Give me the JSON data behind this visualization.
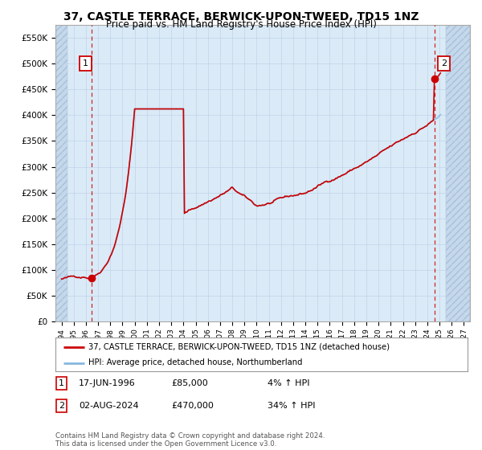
{
  "title": "37, CASTLE TERRACE, BERWICK-UPON-TWEED, TD15 1NZ",
  "subtitle": "Price paid vs. HM Land Registry's House Price Index (HPI)",
  "legend_line1": "37, CASTLE TERRACE, BERWICK-UPON-TWEED, TD15 1NZ (detached house)",
  "legend_line2": "HPI: Average price, detached house, Northumberland",
  "annotation1_label": "1",
  "annotation1_date": "17-JUN-1996",
  "annotation1_price": "£85,000",
  "annotation1_hpi": "4% ↑ HPI",
  "annotation2_label": "2",
  "annotation2_date": "02-AUG-2024",
  "annotation2_price": "£470,000",
  "annotation2_hpi": "34% ↑ HPI",
  "footer": "Contains HM Land Registry data © Crown copyright and database right 2024.\nThis data is licensed under the Open Government Licence v3.0.",
  "hpi_color": "#85b8e0",
  "price_color": "#cc0000",
  "annotation_box_color": "#cc0000",
  "background_color": "#daeaf7",
  "grid_color": "#c0d4e8",
  "ylim": [
    0,
    575000
  ],
  "yticks": [
    0,
    50000,
    100000,
    150000,
    200000,
    250000,
    300000,
    350000,
    400000,
    450000,
    500000,
    550000
  ],
  "xlim_start": 1993.5,
  "xlim_end": 2027.5,
  "hatch_left_end": 1994.5,
  "hatch_right_start": 2025.5,
  "sale1_year": 1996.46,
  "sale1_price": 85000,
  "sale2_year": 2024.58,
  "sale2_price": 470000
}
